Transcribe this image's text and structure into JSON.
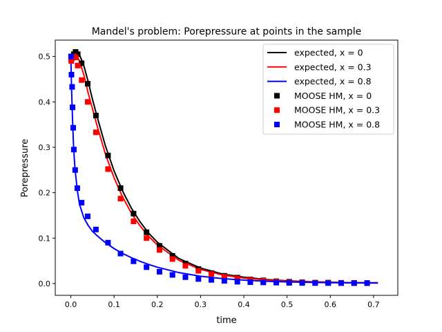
{
  "chart_data": {
    "type": "line",
    "title": "Mandel's problem: Porepressure at points in the sample",
    "xlabel": "time",
    "ylabel": "Porepressure",
    "xlim": [
      -0.036,
      0.756
    ],
    "ylim": [
      -0.026,
      0.536
    ],
    "xticks": [
      0.0,
      0.1,
      0.2,
      0.3,
      0.4,
      0.5,
      0.6,
      0.7
    ],
    "xtick_labels": [
      "0.0",
      "0.1",
      "0.2",
      "0.3",
      "0.4",
      "0.5",
      "0.6",
      "0.7"
    ],
    "yticks": [
      0.0,
      0.1,
      0.2,
      0.3,
      0.4,
      0.5
    ],
    "ytick_labels": [
      "0.0",
      "0.1",
      "0.2",
      "0.3",
      "0.4",
      "0.5"
    ],
    "grid": false,
    "legend_position": "top-right",
    "series": [
      {
        "name": "expected, x = 0",
        "kind": "line",
        "color": "#000000",
        "x": [
          0.0,
          0.005,
          0.01,
          0.015,
          0.02,
          0.03,
          0.04,
          0.05,
          0.06,
          0.08,
          0.1,
          0.12,
          0.14,
          0.16,
          0.18,
          0.2,
          0.25,
          0.3,
          0.35,
          0.4,
          0.45,
          0.5,
          0.55,
          0.6,
          0.65,
          0.7,
          0.71
        ],
        "y": [
          0.495,
          0.503,
          0.508,
          0.508,
          0.504,
          0.48,
          0.445,
          0.406,
          0.37,
          0.303,
          0.248,
          0.203,
          0.166,
          0.136,
          0.111,
          0.091,
          0.055,
          0.034,
          0.021,
          0.014,
          0.009,
          0.006,
          0.004,
          0.003,
          0.002,
          0.0018,
          0.0017
        ]
      },
      {
        "name": "expected, x = 0.3",
        "kind": "line",
        "color": "#ff0000",
        "x": [
          0.0,
          0.005,
          0.01,
          0.015,
          0.02,
          0.03,
          0.04,
          0.05,
          0.06,
          0.08,
          0.1,
          0.12,
          0.14,
          0.16,
          0.18,
          0.2,
          0.25,
          0.3,
          0.35,
          0.4,
          0.45,
          0.5,
          0.55,
          0.6,
          0.65,
          0.7,
          0.71
        ],
        "y": [
          0.49,
          0.5,
          0.503,
          0.5,
          0.49,
          0.46,
          0.42,
          0.385,
          0.35,
          0.285,
          0.233,
          0.19,
          0.155,
          0.127,
          0.104,
          0.085,
          0.051,
          0.031,
          0.019,
          0.012,
          0.008,
          0.005,
          0.0035,
          0.0025,
          0.002,
          0.0015,
          0.0015
        ]
      },
      {
        "name": "expected, x = 0.8",
        "kind": "line",
        "color": "#0000ff",
        "x": [
          0.0,
          0.001,
          0.002,
          0.004,
          0.006,
          0.008,
          0.01,
          0.015,
          0.02,
          0.03,
          0.04,
          0.05,
          0.06,
          0.08,
          0.1,
          0.12,
          0.14,
          0.16,
          0.18,
          0.2,
          0.25,
          0.3,
          0.35,
          0.4,
          0.45,
          0.5,
          0.55,
          0.6,
          0.65,
          0.7,
          0.71
        ],
        "y": [
          0.5,
          0.46,
          0.42,
          0.36,
          0.31,
          0.275,
          0.25,
          0.205,
          0.175,
          0.145,
          0.128,
          0.115,
          0.106,
          0.09,
          0.077,
          0.066,
          0.057,
          0.049,
          0.042,
          0.036,
          0.024,
          0.016,
          0.011,
          0.0075,
          0.005,
          0.0035,
          0.0025,
          0.0018,
          0.0014,
          0.0011,
          0.001
        ]
      },
      {
        "name": "MOOSE HM, x = 0",
        "kind": "scatter",
        "color": "#000000",
        "x": [
          0.001,
          0.004,
          0.007,
          0.011,
          0.016,
          0.025,
          0.039,
          0.058,
          0.086,
          0.115,
          0.145,
          0.175,
          0.205,
          0.235,
          0.265,
          0.295,
          0.325,
          0.355,
          0.385,
          0.415,
          0.445,
          0.475,
          0.505,
          0.535,
          0.565,
          0.595,
          0.625,
          0.655,
          0.685
        ],
        "y": [
          0.495,
          0.5,
          0.505,
          0.51,
          0.505,
          0.485,
          0.44,
          0.37,
          0.282,
          0.21,
          0.154,
          0.113,
          0.083,
          0.061,
          0.044,
          0.032,
          0.023,
          0.017,
          0.013,
          0.009,
          0.007,
          0.005,
          0.004,
          0.003,
          0.002,
          0.002,
          0.0015,
          0.0012,
          0.001
        ]
      },
      {
        "name": "MOOSE HM, x = 0.3",
        "kind": "scatter",
        "color": "#ff0000",
        "x": [
          0.001,
          0.004,
          0.007,
          0.011,
          0.016,
          0.025,
          0.039,
          0.058,
          0.086,
          0.115,
          0.145,
          0.175,
          0.205,
          0.235,
          0.265,
          0.295,
          0.325,
          0.355,
          0.385,
          0.415,
          0.445,
          0.475,
          0.505,
          0.535,
          0.565,
          0.595,
          0.625,
          0.655,
          0.685
        ],
        "y": [
          0.49,
          0.497,
          0.5,
          0.498,
          0.48,
          0.448,
          0.4,
          0.333,
          0.252,
          0.187,
          0.137,
          0.1,
          0.074,
          0.054,
          0.039,
          0.028,
          0.021,
          0.015,
          0.011,
          0.008,
          0.006,
          0.004,
          0.003,
          0.0025,
          0.002,
          0.0015,
          0.0012,
          0.001,
          0.001
        ]
      },
      {
        "name": "MOOSE HM, x = 0.8",
        "kind": "scatter",
        "color": "#0000ff",
        "x": [
          0.0005,
          0.0015,
          0.003,
          0.004,
          0.0055,
          0.007,
          0.01,
          0.015,
          0.025,
          0.039,
          0.058,
          0.086,
          0.115,
          0.145,
          0.175,
          0.205,
          0.235,
          0.265,
          0.295,
          0.325,
          0.355,
          0.385,
          0.415,
          0.445,
          0.475,
          0.505,
          0.535,
          0.565,
          0.595,
          0.625,
          0.655,
          0.685
        ],
        "y": [
          0.5,
          0.46,
          0.433,
          0.388,
          0.343,
          0.295,
          0.25,
          0.21,
          0.178,
          0.148,
          0.119,
          0.09,
          0.066,
          0.049,
          0.036,
          0.026,
          0.019,
          0.014,
          0.01,
          0.008,
          0.006,
          0.004,
          0.003,
          0.0025,
          0.002,
          0.0015,
          0.0012,
          0.001,
          0.001,
          0.001,
          0.001,
          0.001
        ]
      }
    ]
  }
}
